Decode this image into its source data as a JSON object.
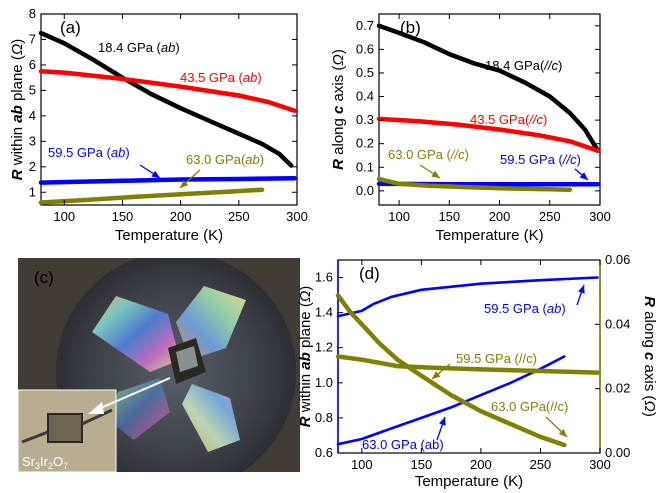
{
  "chart_data": [
    {
      "id": "a",
      "type": "line",
      "panel_label": "(a)",
      "xlabel": "Temperature (K)",
      "ylabel": "R within ab plane (Ω)",
      "ylabel_parts": [
        "R",
        " within ",
        "ab",
        " plane (",
        "Ω",
        ")"
      ],
      "xlim": [
        80,
        300
      ],
      "ylim": [
        0.5,
        8
      ],
      "xticks": [
        100,
        150,
        200,
        250,
        300
      ],
      "yticks": [
        1,
        2,
        3,
        4,
        5,
        6,
        7,
        8
      ],
      "series": [
        {
          "pressure": "18.4 GPa",
          "axis_tag": "ab",
          "color": "#000000",
          "x": [
            80,
            100,
            125,
            150,
            175,
            200,
            225,
            250,
            270,
            285,
            295
          ],
          "y": [
            7.25,
            6.85,
            6.2,
            5.5,
            4.85,
            4.3,
            3.8,
            3.3,
            2.9,
            2.5,
            2.05
          ]
        },
        {
          "pressure": "43.5 GPa",
          "axis_tag": "ab",
          "color": "#ff0000",
          "x": [
            80,
            100,
            150,
            200,
            250,
            275,
            298
          ],
          "y": [
            5.75,
            5.7,
            5.45,
            5.15,
            4.8,
            4.55,
            4.2
          ]
        },
        {
          "pressure": "59.5 GPa",
          "axis_tag": "ab",
          "color": "#0000ff",
          "x": [
            80,
            150,
            200,
            250,
            298
          ],
          "y": [
            1.38,
            1.45,
            1.5,
            1.52,
            1.55
          ]
        },
        {
          "pressure": "63.0 GPa",
          "axis_tag": "ab",
          "color": "#808000",
          "x": [
            80,
            120,
            160,
            200,
            240,
            270
          ],
          "y": [
            0.6,
            0.7,
            0.82,
            0.92,
            1.02,
            1.1
          ]
        }
      ],
      "annotations": [
        {
          "pressure": "18.4 GPa",
          "tag": "ab",
          "open": " (",
          "close": ")",
          "color": "#000000"
        },
        {
          "pressure": "43.5 GPa",
          "tag": "ab",
          "open": " (",
          "close": ")",
          "color": "#ff0000"
        },
        {
          "pressure": "59.5 GPa",
          "tag": "ab",
          "open": " (",
          "close": ")",
          "color": "#0000ff"
        },
        {
          "pressure": "63.0 GPa",
          "tag": "ab",
          "open": "(",
          "close": ")",
          "color": "#808000"
        }
      ]
    },
    {
      "id": "b",
      "type": "line",
      "panel_label": "(b)",
      "xlabel": "Temperature (K)",
      "ylabel": "R along c axis (Ω)",
      "ylabel_parts": [
        "R",
        " along ",
        "c",
        " axis (",
        "Ω",
        ")"
      ],
      "xlim": [
        80,
        300
      ],
      "ylim": [
        -0.06,
        0.75
      ],
      "xticks": [
        100,
        150,
        200,
        250,
        300
      ],
      "yticks": [
        0.0,
        0.1,
        0.2,
        0.3,
        0.4,
        0.5,
        0.6,
        0.7
      ],
      "ytick_labels": [
        "0.0",
        "0.1",
        "0.2",
        "0.3",
        "0.4",
        "0.5",
        "0.6",
        "0.7"
      ],
      "series": [
        {
          "pressure": "18.4 GPa",
          "axis_tag": "//c",
          "color": "#000000",
          "x": [
            80,
            100,
            125,
            150,
            175,
            200,
            225,
            250,
            270,
            285,
            298
          ],
          "y": [
            0.7,
            0.67,
            0.63,
            0.58,
            0.54,
            0.51,
            0.46,
            0.4,
            0.33,
            0.26,
            0.17
          ]
        },
        {
          "pressure": "43.5 GPa",
          "axis_tag": "//c",
          "color": "#ff0000",
          "x": [
            80,
            120,
            160,
            200,
            240,
            270,
            298
          ],
          "y": [
            0.305,
            0.295,
            0.28,
            0.26,
            0.235,
            0.21,
            0.17
          ]
        },
        {
          "pressure": "59.5 GPa",
          "axis_tag": "//c",
          "color": "#0000ff",
          "x": [
            80,
            150,
            200,
            250,
            298
          ],
          "y": [
            0.03,
            0.028,
            0.028,
            0.028,
            0.028
          ]
        },
        {
          "pressure": "63.0 GPa",
          "axis_tag": "//c",
          "color": "#808000",
          "x": [
            80,
            100,
            130,
            170,
            210,
            250,
            270
          ],
          "y": [
            0.05,
            0.03,
            0.022,
            0.015,
            0.01,
            0.007,
            0.005
          ]
        }
      ],
      "annotations": [
        {
          "pressure": "18.4 GPa",
          "tag": "//c",
          "open": "(",
          "close": ")",
          "color": "#000000"
        },
        {
          "pressure": "43.5 GPa",
          "tag": "//c",
          "open": "(",
          "close": ")",
          "color": "#ff0000"
        },
        {
          "pressure": "63.0 GPa",
          "tag": "//c",
          "open": " (",
          "close": ")",
          "color": "#808000"
        },
        {
          "pressure": "59.5 GPa",
          "tag": "//c",
          "open": " (",
          "close": ")",
          "color": "#0000ff"
        }
      ]
    },
    {
      "id": "d",
      "type": "line",
      "panel_label": "(d)",
      "xlabel": "Temperature (K)",
      "ylabel_left": "R within ab plane (Ω)",
      "ylabel_left_parts": [
        "R",
        " within ",
        "ab",
        " plane (",
        "Ω",
        ")"
      ],
      "ylabel_right": "R along c axis (Ω)",
      "ylabel_right_parts": [
        "R",
        " along ",
        "c",
        " axis (",
        "Ω",
        ")"
      ],
      "xlim": [
        80,
        300
      ],
      "ylim_left": [
        0.6,
        1.7
      ],
      "ylim_right": [
        0.0,
        0.06
      ],
      "xticks": [
        100,
        150,
        200,
        250,
        300
      ],
      "yticks_left": [
        0.6,
        0.8,
        1.0,
        1.2,
        1.4,
        1.6
      ],
      "yticks_left_labels": [
        "0.6",
        "0.8",
        "1.0",
        "1.2",
        "1.4",
        "1.6"
      ],
      "yticks_right": [
        0.0,
        0.02,
        0.04,
        0.06
      ],
      "yticks_right_labels": [
        "0.00",
        "0.02",
        "0.04",
        "0.06"
      ],
      "left_color": "#0000ff",
      "right_color": "#808000",
      "series": [
        {
          "pressure": "59.5 GPa",
          "axis_tag": "ab",
          "axis": "left",
          "color": "#0000ff",
          "x": [
            80,
            100,
            110,
            125,
            150,
            200,
            250,
            298
          ],
          "y": [
            1.38,
            1.41,
            1.45,
            1.49,
            1.53,
            1.565,
            1.585,
            1.6
          ]
        },
        {
          "pressure": "63.0 GPa",
          "axis_tag": "ab",
          "axis": "left",
          "color": "#0000ff",
          "x": [
            80,
            100,
            125,
            150,
            175,
            200,
            225,
            250,
            270
          ],
          "y": [
            0.65,
            0.68,
            0.74,
            0.8,
            0.86,
            0.93,
            1.0,
            1.08,
            1.15
          ]
        },
        {
          "pressure": "59.5 GPa",
          "axis_tag": "//c",
          "axis": "right",
          "color": "#808000",
          "x": [
            80,
            100,
            130,
            160,
            200,
            250,
            298
          ],
          "y": [
            0.03,
            0.029,
            0.027,
            0.0265,
            0.026,
            0.0255,
            0.025
          ]
        },
        {
          "pressure": "63.0 GPa",
          "axis_tag": "//c",
          "axis": "right",
          "color": "#808000",
          "x": [
            80,
            90,
            100,
            115,
            130,
            150,
            175,
            200,
            225,
            250,
            270
          ],
          "y": [
            0.049,
            0.044,
            0.04,
            0.034,
            0.029,
            0.024,
            0.018,
            0.013,
            0.009,
            0.005,
            0.0025
          ]
        }
      ],
      "annotations": [
        {
          "text": "59.5 GPa (",
          "tag": "ab",
          "close": ")",
          "color": "#0000ff"
        },
        {
          "text": "59.5 GPa (//c)",
          "color": "#808000"
        },
        {
          "text": "63.0 GPa(//c)",
          "color": "#808000"
        },
        {
          "text": "63.0 GPa (ab)",
          "color": "#0000ff"
        }
      ]
    }
  ],
  "photo": {
    "panel_label": "(c)",
    "inset_label_parts": [
      "Sr",
      "3",
      "Ir",
      "2",
      "O",
      "7"
    ]
  }
}
